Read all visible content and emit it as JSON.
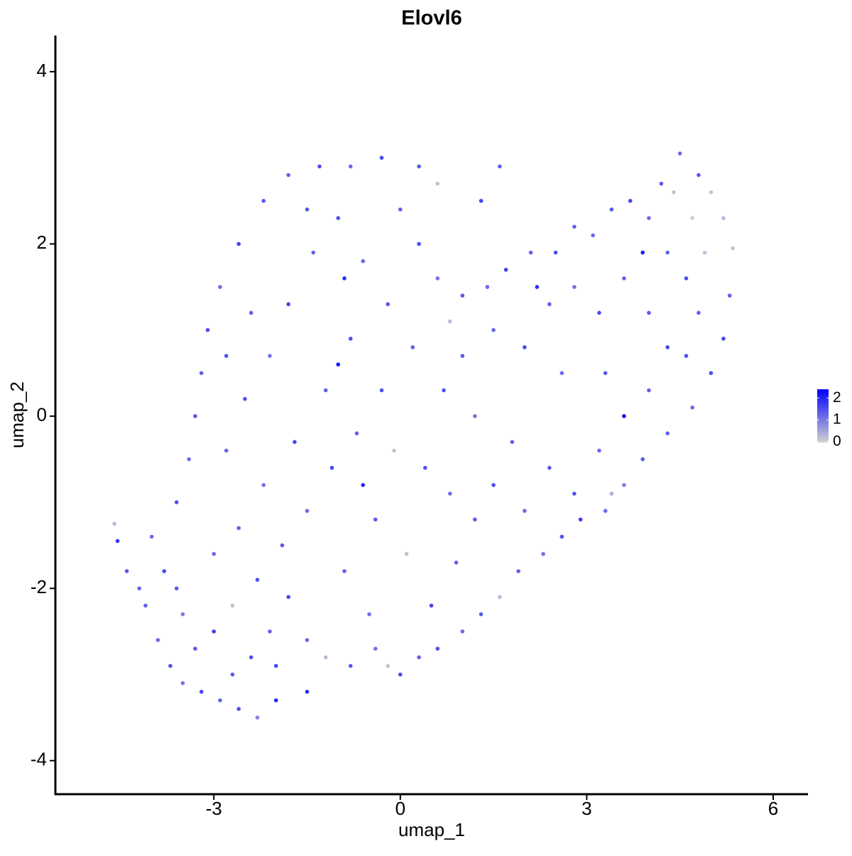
{
  "chart_data": {
    "type": "scatter",
    "title": "Elovl6",
    "xlabel": "umap_1",
    "ylabel": "umap_2",
    "xlim": [
      -5.55,
      6.56
    ],
    "ylim": [
      -4.39,
      4.42
    ],
    "xticks": [
      -3,
      0,
      3,
      6
    ],
    "yticks": [
      -4,
      -2,
      0,
      2,
      4
    ],
    "color_low": "#d3d3d3",
    "color_high": "#0000ff",
    "clim": [
      0,
      2.4
    ],
    "cticks": [
      0,
      1,
      2
    ],
    "x": [
      -4.6,
      -4.55,
      -4.4,
      -4.1,
      -3.9,
      -3.7,
      -3.5,
      -3.2,
      -2.9,
      -2.6,
      -2.3,
      -2.0,
      -1.5,
      -4.0,
      -3.8,
      -3.5,
      -3.3,
      -3.0,
      -2.7,
      -2.4,
      -2.1,
      -1.8,
      -1.5,
      -1.2,
      -0.8,
      -0.4,
      -0.2,
      0.0,
      0.3,
      0.6,
      1.0,
      1.3,
      1.6,
      1.9,
      2.3,
      2.6,
      2.9,
      3.3,
      3.6,
      3.9,
      4.3,
      4.7,
      5.0,
      5.2,
      5.3,
      5.35,
      5.2,
      5.0,
      4.8,
      4.5,
      4.4,
      4.7,
      4.9,
      4.6,
      4.3,
      4.0,
      3.7,
      3.4,
      3.1,
      2.8,
      2.5,
      2.1,
      1.7,
      1.4,
      1.0,
      0.6,
      0.8,
      0.3,
      0.0,
      0.3,
      -0.3,
      -0.8,
      -1.3,
      -1.8,
      -2.2,
      -2.6,
      -2.9,
      -3.1,
      -3.2,
      -3.3,
      -3.4,
      -3.6,
      -2.8,
      -2.5,
      -2.1,
      -1.8,
      -1.4,
      -1.0,
      -0.6,
      -0.2,
      0.2,
      -0.3,
      -0.7,
      -1.1,
      -1.5,
      -1.9,
      -2.3,
      -2.6,
      -2.2,
      -1.7,
      -1.2,
      -0.8,
      -0.9,
      -1.5,
      -2.4,
      -2.8,
      -3.0,
      -3.6,
      -4.2,
      -0.1,
      0.4,
      0.8,
      1.2,
      0.9,
      0.5,
      0.1,
      -0.4,
      -0.9,
      -0.5,
      1.5,
      2.0,
      2.4,
      1.8,
      1.2,
      0.7,
      1.0,
      1.5,
      2.0,
      2.4,
      2.8,
      3.2,
      3.6,
      4.0,
      4.3,
      4.0,
      3.6,
      3.2,
      2.8,
      3.3,
      2.6,
      4.6,
      4.8,
      1.3,
      1.6,
      -2.0,
      -2.7,
      -0.6,
      -1.0,
      2.2,
      0.6,
      3.4,
      4.2,
      3.9
    ],
    "y": [
      -1.25,
      -1.45,
      -1.8,
      -2.2,
      -2.6,
      -2.9,
      -3.1,
      -3.2,
      -3.3,
      -3.4,
      -3.5,
      -3.3,
      -3.2,
      -1.4,
      -1.8,
      -2.3,
      -2.7,
      -2.5,
      -2.2,
      -2.8,
      -2.5,
      -2.1,
      -2.6,
      -2.8,
      -2.9,
      -2.7,
      -2.9,
      -3.0,
      -2.8,
      -2.7,
      -2.5,
      -2.3,
      -2.1,
      -1.8,
      -1.6,
      -1.4,
      -1.2,
      -1.1,
      -0.8,
      -0.5,
      -0.2,
      0.1,
      0.5,
      0.9,
      1.4,
      1.95,
      2.3,
      2.6,
      2.8,
      3.05,
      2.6,
      2.3,
      1.9,
      1.6,
      1.9,
      2.3,
      2.5,
      2.4,
      2.1,
      2.2,
      1.9,
      1.9,
      1.7,
      1.5,
      1.4,
      1.6,
      1.1,
      2.0,
      2.4,
      2.9,
      3.0,
      2.9,
      2.9,
      2.8,
      2.5,
      2.0,
      1.5,
      1.0,
      0.5,
      0.0,
      -0.5,
      -1.0,
      -0.4,
      0.2,
      0.7,
      1.3,
      1.9,
      2.3,
      1.8,
      1.3,
      0.8,
      0.3,
      -0.2,
      -0.6,
      -1.1,
      -1.5,
      -1.9,
      -1.3,
      -0.8,
      -0.3,
      0.3,
      0.9,
      1.6,
      2.4,
      1.2,
      0.7,
      -1.6,
      -2.0,
      -2.0,
      -0.4,
      -0.6,
      -0.9,
      -1.2,
      -1.7,
      -2.2,
      -1.6,
      -1.2,
      -1.8,
      -2.3,
      -0.8,
      -1.1,
      -0.6,
      -0.3,
      0.0,
      0.3,
      0.7,
      1.0,
      0.8,
      1.3,
      1.5,
      1.2,
      1.6,
      1.2,
      0.8,
      0.3,
      0.0,
      -0.4,
      -0.9,
      0.5,
      0.5,
      0.7,
      1.2,
      2.5,
      2.9,
      -2.9,
      -3.0,
      -0.8,
      0.6,
      1.5,
      2.7,
      -0.9,
      2.7,
      1.9
    ],
    "values": [
      0.3,
      1.8,
      1.4,
      1.3,
      1.2,
      1.5,
      1.1,
      1.6,
      1.3,
      1.5,
      0.9,
      2.0,
      1.9,
      1.2,
      1.6,
      1.0,
      1.4,
      1.7,
      0.2,
      1.5,
      1.3,
      1.6,
      1.2,
      0.3,
      1.4,
      1.1,
      0.2,
      1.6,
      1.3,
      1.5,
      1.2,
      1.4,
      0.3,
      1.3,
      1.1,
      1.5,
      1.7,
      1.2,
      1.0,
      1.4,
      1.3,
      1.2,
      1.5,
      1.6,
      1.3,
      0.2,
      0.3,
      0.2,
      1.4,
      1.2,
      0.2,
      0.1,
      0.2,
      1.5,
      1.3,
      1.2,
      1.6,
      1.4,
      1.2,
      1.3,
      1.5,
      1.3,
      1.6,
      1.2,
      1.4,
      1.1,
      0.3,
      1.5,
      1.3,
      1.4,
      1.6,
      1.2,
      1.5,
      1.3,
      1.4,
      1.6,
      1.2,
      1.5,
      1.3,
      1.4,
      1.2,
      1.5,
      1.3,
      1.5,
      1.1,
      1.6,
      1.3,
      1.5,
      1.2,
      1.4,
      1.3,
      1.5,
      1.3,
      1.6,
      1.2,
      1.4,
      1.5,
      1.3,
      1.1,
      1.6,
      1.3,
      1.5,
      1.9,
      1.4,
      1.3,
      1.5,
      1.2,
      1.4,
      1.3,
      0.2,
      1.5,
      1.2,
      1.4,
      1.3,
      1.6,
      0.2,
      1.4,
      1.3,
      1.1,
      1.5,
      1.2,
      1.4,
      1.3,
      1.1,
      1.5,
      1.4,
      1.2,
      1.6,
      1.3,
      1.1,
      1.5,
      1.3,
      1.4,
      1.6,
      1.3,
      2.3,
      1.2,
      1.5,
      1.4,
      1.2,
      1.5,
      1.3,
      1.6,
      1.3,
      1.6,
      1.4,
      2.0,
      2.2,
      1.9,
      0.2,
      0.4,
      1.4,
      2.1
    ]
  }
}
